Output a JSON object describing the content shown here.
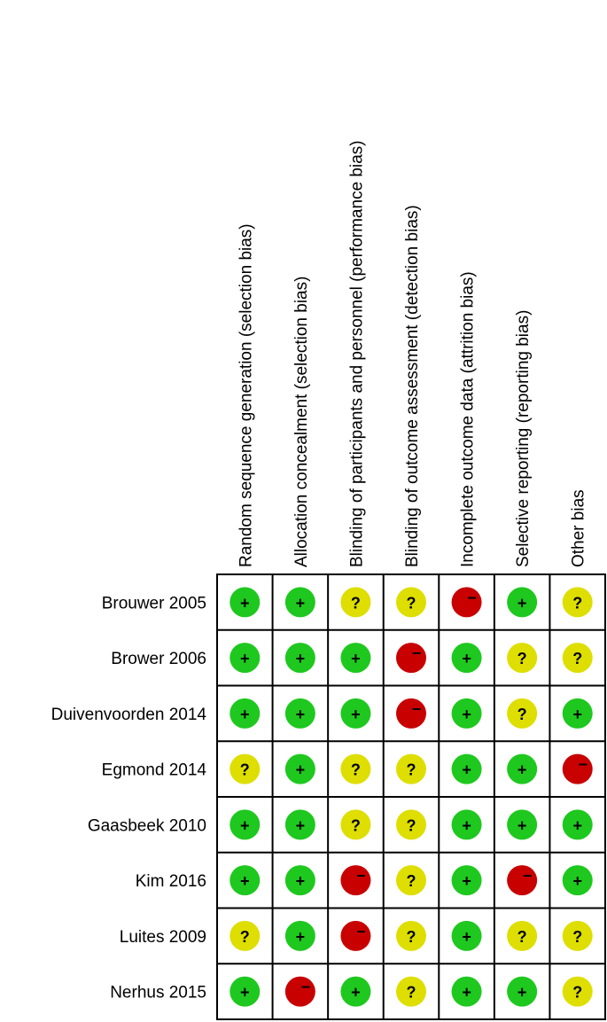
{
  "columns": [
    "Random sequence generation (selection bias)",
    "Allocation concealment (selection bias)",
    "Blinding of participants and personnel (performance bias)",
    "Blinding of outcome assessment (detection bias)",
    "Incomplete outcome data (attrition bias)",
    "Selective reporting (reporting bias)",
    "Other bias"
  ],
  "rows": [
    {
      "study": "Brouwer 2005",
      "cells": [
        "+",
        "+",
        "?",
        "?",
        "−",
        "+",
        "?"
      ]
    },
    {
      "study": "Brower 2006",
      "cells": [
        "+",
        "+",
        "+",
        "−",
        "+",
        "?",
        "?"
      ]
    },
    {
      "study": "Duivenvoorden 2014",
      "cells": [
        "+",
        "+",
        "+",
        "−",
        "+",
        "?",
        "+"
      ]
    },
    {
      "study": "Egmond 2014",
      "cells": [
        "?",
        "+",
        "?",
        "?",
        "+",
        "+",
        "−"
      ]
    },
    {
      "study": "Gaasbeek 2010",
      "cells": [
        "+",
        "+",
        "?",
        "?",
        "+",
        "+",
        "+"
      ]
    },
    {
      "study": "Kim 2016",
      "cells": [
        "+",
        "+",
        "−",
        "?",
        "+",
        "−",
        "+"
      ]
    },
    {
      "study": "Luites 2009",
      "cells": [
        "?",
        "+",
        "−",
        "?",
        "+",
        "?",
        "?"
      ]
    },
    {
      "study": "Nerhus 2015",
      "cells": [
        "+",
        "−",
        "+",
        "?",
        "+",
        "+",
        "?"
      ]
    }
  ],
  "symbol_colors": [
    {
      "symbol": "+",
      "color": "#1ec81e"
    },
    {
      "symbol": "?",
      "color": "#dede00"
    },
    {
      "symbol": "−",
      "color": "#c80000",
      "offset": true
    }
  ]
}
